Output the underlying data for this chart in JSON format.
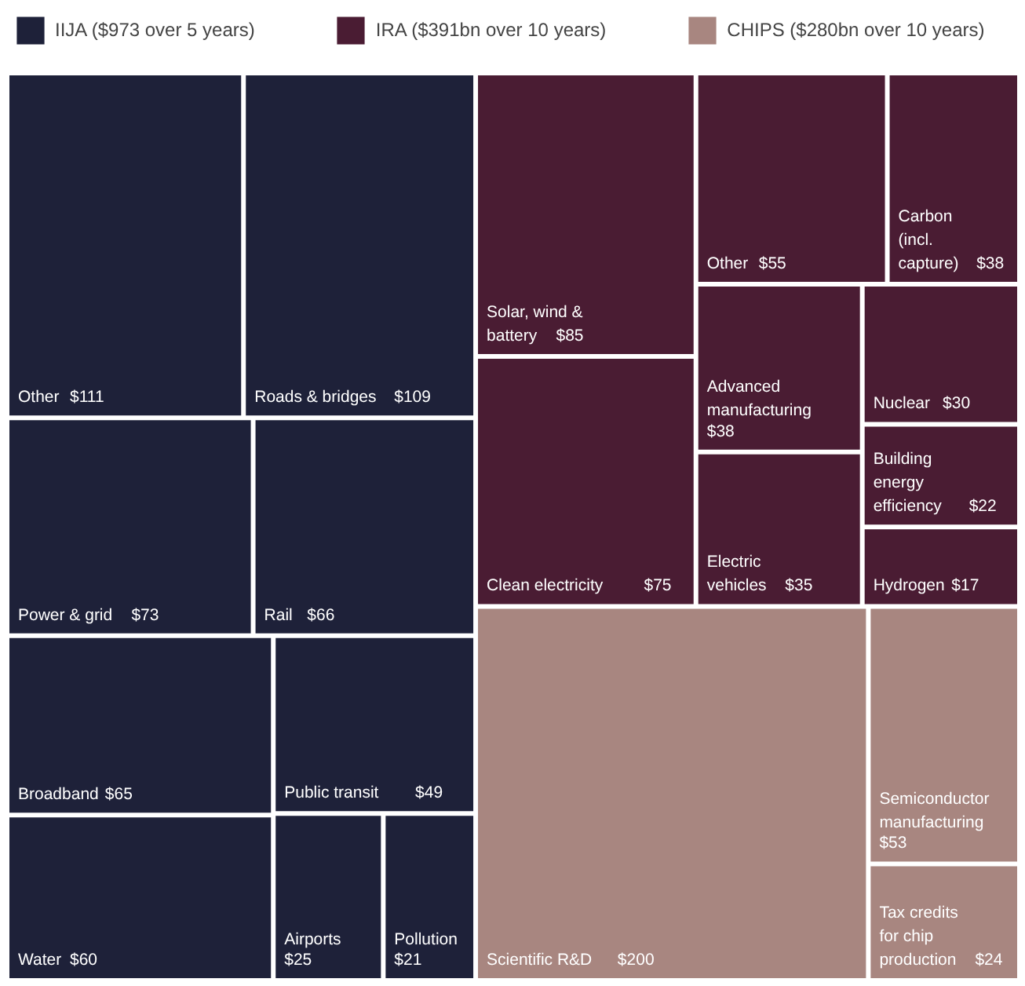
{
  "chart_data": {
    "type": "other",
    "legend": "top",
    "categories": [
      "Other",
      "Roads & bridges",
      "Power & grid",
      "Rail",
      "Broadband",
      "Water",
      "Public transit",
      "Airports",
      "Pollution",
      "Solar, wind & battery",
      "Clean electricity",
      "Other",
      "Carbon (incl. capture)",
      "Advanced manufacturing",
      "Electric vehicles",
      "Nuclear",
      "Building energy efficiency",
      "Hydrogen",
      "Scientific R&D",
      "Semiconductor manufacturing",
      "Tax credits for chip production"
    ],
    "series": [
      {
        "name": "IIJA ($973 over 5 years)",
        "color": "#1e2139",
        "values": [
          111,
          109,
          73,
          66,
          65,
          60,
          49,
          25,
          21,
          null,
          null,
          null,
          null,
          null,
          null,
          null,
          null,
          null,
          null,
          null,
          null
        ],
        "value_labels": [
          "$111",
          "$109",
          "$73",
          "$66",
          "$65",
          "$60",
          "$49",
          "$25",
          "$21",
          null,
          null,
          null,
          null,
          null,
          null,
          null,
          null,
          null,
          null,
          null,
          null
        ]
      },
      {
        "name": "IRA ($391bn over 10 years)",
        "color": "#4a1c33",
        "values": [
          null,
          null,
          null,
          null,
          null,
          null,
          null,
          null,
          null,
          85,
          75,
          55,
          38,
          38,
          35,
          30,
          22,
          17,
          null,
          null,
          null
        ],
        "value_labels": [
          null,
          null,
          null,
          null,
          null,
          null,
          null,
          null,
          null,
          "$85",
          "$75",
          "$55",
          "$38",
          "$38",
          "$35",
          "$30",
          "$22",
          "$17",
          null,
          null,
          null
        ]
      },
      {
        "name": "CHIPS ($280bn over 10 years)",
        "color": "#a88680",
        "values": [
          null,
          null,
          null,
          null,
          null,
          null,
          null,
          null,
          null,
          null,
          null,
          null,
          null,
          null,
          null,
          null,
          null,
          null,
          200,
          53,
          24
        ],
        "value_labels": [
          null,
          null,
          null,
          null,
          null,
          null,
          null,
          null,
          null,
          null,
          null,
          null,
          null,
          null,
          null,
          null,
          null,
          null,
          "$200",
          "$53",
          "$24"
        ]
      }
    ]
  }
}
